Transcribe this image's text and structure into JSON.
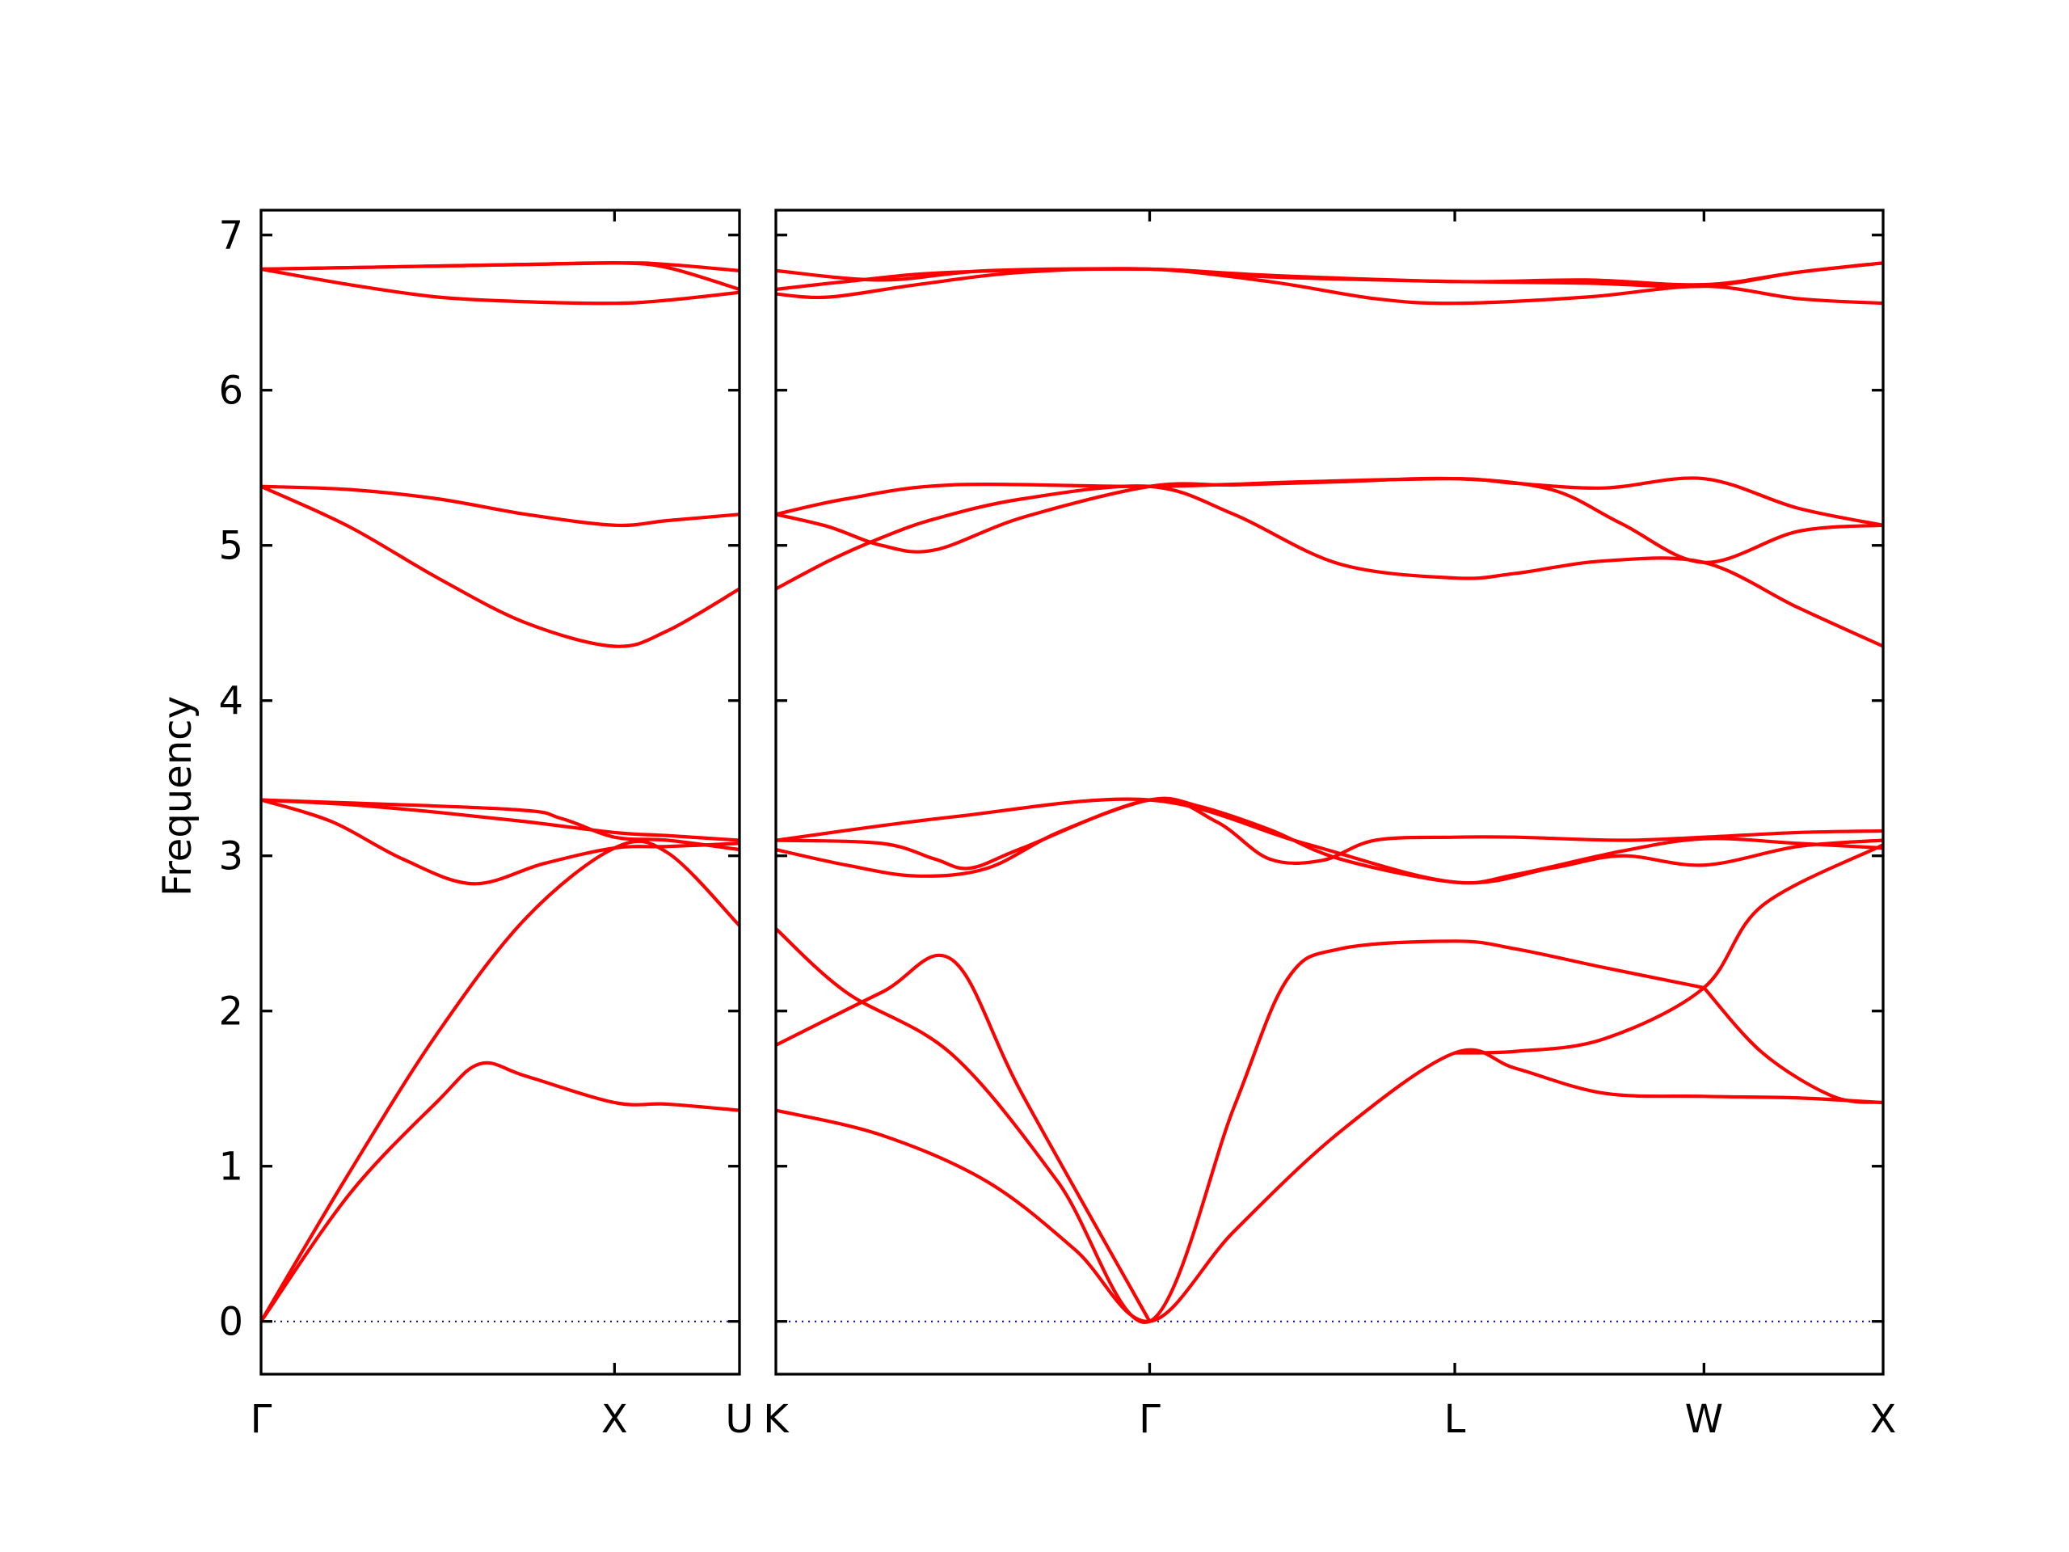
{
  "chart_data": {
    "type": "line",
    "ylabel": "Frequency",
    "ylim": [
      -0.34,
      7.16
    ],
    "yticks": [
      0,
      1,
      2,
      3,
      4,
      5,
      6,
      7
    ],
    "grid": false,
    "colors": {
      "bands": "#ff0000",
      "zero_line": "#0000cc",
      "axes": "#000000"
    },
    "x_units": "cumulative path distance (X segment = 1.0)",
    "panels": [
      {
        "name": "Γ-X-U",
        "xlim": [
          0,
          1.3536
        ],
        "xticks": [
          {
            "x": 0,
            "label": "Γ"
          },
          {
            "x": 1.0,
            "label": "X"
          },
          {
            "x": 1.3536,
            "label": "U"
          }
        ],
        "series": [
          {
            "x": [
              0,
              0.25,
              0.5,
              0.62,
              0.75,
              1.0,
              1.15,
              1.3536
            ],
            "y": [
              0,
              0.82,
              1.42,
              1.66,
              1.58,
              1.41,
              1.4,
              1.36
            ]
          },
          {
            "x": [
              0,
              0.25,
              0.5,
              0.75,
              1.0,
              1.15,
              1.3536
            ],
            "y": [
              0,
              0.96,
              1.86,
              2.6,
              3.05,
              3.02,
              2.55
            ]
          },
          {
            "x": [
              0,
              0.2,
              0.4,
              0.6,
              0.8,
              1.0,
              1.15,
              1.3536
            ],
            "y": [
              3.36,
              3.22,
              2.98,
              2.82,
              2.95,
              3.05,
              3.06,
              3.08
            ]
          },
          {
            "x": [
              0,
              0.25,
              0.5,
              0.75,
              1.0,
              1.15,
              1.3536
            ],
            "y": [
              3.36,
              3.33,
              3.28,
              3.22,
              3.15,
              3.13,
              3.1
            ]
          },
          {
            "x": [
              0,
              0.7,
              0.85,
              1.0,
              1.15,
              1.3536
            ],
            "y": [
              3.36,
              3.3,
              3.24,
              3.12,
              3.1,
              3.04
            ]
          },
          {
            "x": [
              0,
              0.25,
              0.5,
              0.75,
              1.0,
              1.15,
              1.3536
            ],
            "y": [
              5.38,
              5.12,
              4.79,
              4.5,
              4.35,
              4.45,
              4.72
            ]
          },
          {
            "x": [
              0,
              0.25,
              0.5,
              0.75,
              1.0,
              1.15,
              1.3536
            ],
            "y": [
              5.38,
              5.36,
              5.3,
              5.2,
              5.13,
              5.16,
              5.2
            ]
          },
          {
            "x": [
              0,
              0.25,
              0.5,
              0.75,
              1.0,
              1.15,
              1.3536
            ],
            "y": [
              6.78,
              6.68,
              6.6,
              6.57,
              6.56,
              6.58,
              6.63
            ]
          },
          {
            "x": [
              0,
              0.25,
              0.5,
              0.75,
              1.0,
              1.15,
              1.3536
            ],
            "y": [
              6.78,
              6.79,
              6.8,
              6.81,
              6.82,
              6.79,
              6.65
            ]
          },
          {
            "x": [
              0,
              0.5,
              1.0,
              1.15,
              1.3536
            ],
            "y": [
              6.78,
              6.8,
              6.82,
              6.81,
              6.77
            ]
          }
        ]
      },
      {
        "name": "K-Γ-L-W-X",
        "xlim": [
          0,
          3.1422
        ],
        "xticks": [
          {
            "x": 0,
            "label": "K"
          },
          {
            "x": 1.0607,
            "label": "Γ"
          },
          {
            "x": 1.9267,
            "label": "L"
          },
          {
            "x": 2.6338,
            "label": "W"
          },
          {
            "x": 3.1422,
            "label": "X"
          }
        ],
        "series": [
          {
            "x": [
              0,
              0.3,
              0.6,
              0.85,
              1.0607,
              1.3,
              1.6,
              1.9267,
              2.1,
              2.35,
              2.6338,
              2.9,
              3.1422
            ],
            "y": [
              1.36,
              1.2,
              0.9,
              0.46,
              0,
              0.58,
              1.22,
              1.73,
              1.63,
              1.47,
              1.45,
              1.44,
              1.41
            ]
          },
          {
            "x": [
              0,
              0.2,
              0.5,
              0.8,
              1.0607,
              1.3,
              1.45,
              1.6,
              1.9267,
              2.1,
              2.35,
              2.6338
            ],
            "y": [
              2.53,
              2.12,
              1.72,
              0.9,
              0,
              1.38,
              2.2,
              2.4,
              2.45,
              2.4,
              2.28,
              2.15
            ]
          },
          {
            "x": [
              0,
              0.3,
              0.5,
              0.7,
              1.0607
            ],
            "y": [
              1.78,
              2.12,
              2.33,
              1.46,
              0
            ]
          },
          {
            "x": [
              1.9267,
              2.1,
              2.35,
              2.6338,
              2.8,
              3.1422
            ],
            "y": [
              1.73,
              1.74,
              1.82,
              2.15,
              2.68,
              3.07
            ]
          },
          {
            "x": [
              2.6338,
              2.8,
              3.0,
              3.1422
            ],
            "y": [
              2.15,
              1.73,
              1.45,
              1.41
            ]
          },
          {
            "x": [
              0,
              0.2,
              0.4,
              0.6,
              0.8,
              1.0607,
              1.2,
              1.4,
              1.6,
              1.9267,
              2.1,
              2.4,
              2.6338,
              2.9,
              3.1422
            ],
            "y": [
              3.04,
              2.94,
              2.87,
              2.92,
              3.15,
              3.36,
              3.32,
              3.17,
              2.98,
              2.83,
              2.88,
              3.03,
              3.11,
              3.08,
              3.05
            ]
          },
          {
            "x": [
              0,
              0.3,
              0.45,
              0.55,
              0.7,
              1.0607,
              1.25,
              1.4,
              1.55,
              1.7,
              1.9267,
              2.1,
              2.4,
              2.6338,
              2.9,
              3.1422
            ],
            "y": [
              3.1,
              3.08,
              2.98,
              2.92,
              3.05,
              3.36,
              3.22,
              2.98,
              2.97,
              3.1,
              3.12,
              3.12,
              3.1,
              3.12,
              3.15,
              3.16
            ]
          },
          {
            "x": [
              0,
              0.5,
              1.0607,
              1.5,
              1.9267,
              2.2,
              2.4,
              2.6338,
              2.9,
              3.1422
            ],
            "y": [
              3.1,
              3.25,
              3.36,
              3.08,
              2.83,
              2.92,
              3.0,
              2.94,
              3.06,
              3.1
            ]
          },
          {
            "x": [
              0,
              0.15,
              0.3,
              0.45,
              0.7,
              1.0607,
              1.3,
              1.6,
              1.9267,
              2.1,
              2.35,
              2.6338,
              2.9,
              3.1422
            ],
            "y": [
              4.72,
              4.9,
              5.05,
              5.17,
              5.3,
              5.38,
              5.2,
              4.88,
              4.79,
              4.82,
              4.9,
              4.89,
              4.6,
              4.35
            ]
          },
          {
            "x": [
              0,
              0.15,
              0.3,
              0.45,
              0.7,
              1.0607,
              1.3,
              1.6,
              1.9267,
              2.2,
              2.4,
              2.6338,
              2.9,
              3.1422
            ],
            "y": [
              5.2,
              5.12,
              5.0,
              4.97,
              5.18,
              5.38,
              5.39,
              5.41,
              5.43,
              5.36,
              5.14,
              4.89,
              5.09,
              5.13
            ]
          },
          {
            "x": [
              0,
              0.2,
              0.5,
              1.0607,
              1.5,
              1.9267,
              2.1,
              2.35,
              2.6338,
              2.9,
              3.1422
            ],
            "y": [
              5.2,
              5.3,
              5.39,
              5.38,
              5.41,
              5.43,
              5.4,
              5.37,
              5.43,
              5.24,
              5.13
            ]
          },
          {
            "x": [
              0,
              0.15,
              0.4,
              0.7,
              1.0607,
              1.4,
              1.7,
              1.9267,
              2.3,
              2.6338,
              2.9,
              3.1422
            ],
            "y": [
              6.62,
              6.6,
              6.68,
              6.76,
              6.78,
              6.7,
              6.59,
              6.56,
              6.6,
              6.67,
              6.59,
              6.56
            ]
          },
          {
            "x": [
              0,
              0.2,
              0.5,
              1.0607,
              1.4,
              1.9267,
              2.3,
              2.6338,
              2.9,
              3.1422
            ],
            "y": [
              6.65,
              6.7,
              6.76,
              6.78,
              6.73,
              6.7,
              6.69,
              6.67,
              6.76,
              6.82
            ]
          },
          {
            "x": [
              0,
              0.3,
              0.6,
              1.0607,
              1.4,
              1.9267,
              2.3,
              2.6338,
              2.9,
              3.1422
            ],
            "y": [
              6.77,
              6.71,
              6.77,
              6.78,
              6.74,
              6.7,
              6.71,
              6.68,
              6.76,
              6.82
            ]
          }
        ]
      }
    ]
  }
}
